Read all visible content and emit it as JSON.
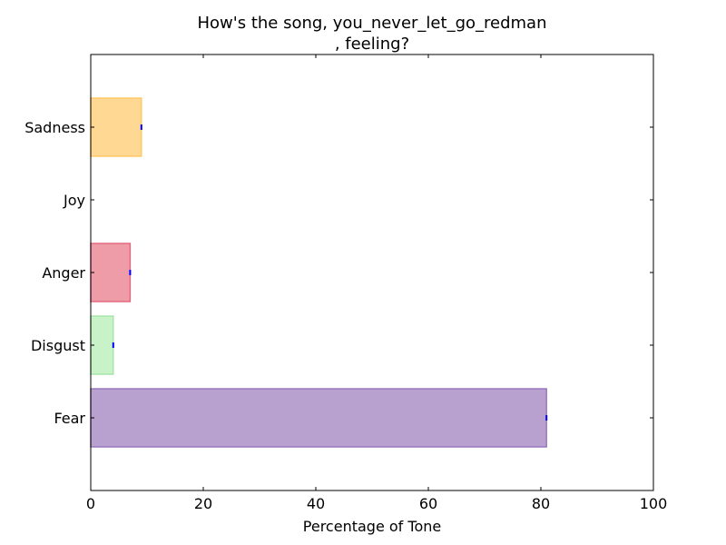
{
  "chart_data": {
    "type": "bar",
    "orientation": "horizontal",
    "title_lines": [
      "How's the song, you_never_let_go_redman",
      ", feeling?"
    ],
    "xlabel": "Percentage of Tone",
    "ylabel": "",
    "xlim": [
      0,
      100
    ],
    "x_ticks": [
      0,
      20,
      40,
      60,
      80,
      100
    ],
    "grid": false,
    "categories": [
      "Sadness",
      "Joy",
      "Anger",
      "Disgust",
      "Fear"
    ],
    "values": [
      9,
      0,
      7,
      4,
      81
    ],
    "colors": {
      "Sadness": "#ffd894",
      "Joy": "#ffffff",
      "Anger": "#ef9ca9",
      "Disgust": "#c8f2c8",
      "Fear": "#b9a1cf"
    },
    "edge_colors": {
      "Sadness": "#ffc966",
      "Joy": "#ffffff",
      "Anger": "#e36b80",
      "Disgust": "#a9e6a9",
      "Fear": "#9b78be"
    },
    "error_bar_color": "#0000ff"
  }
}
